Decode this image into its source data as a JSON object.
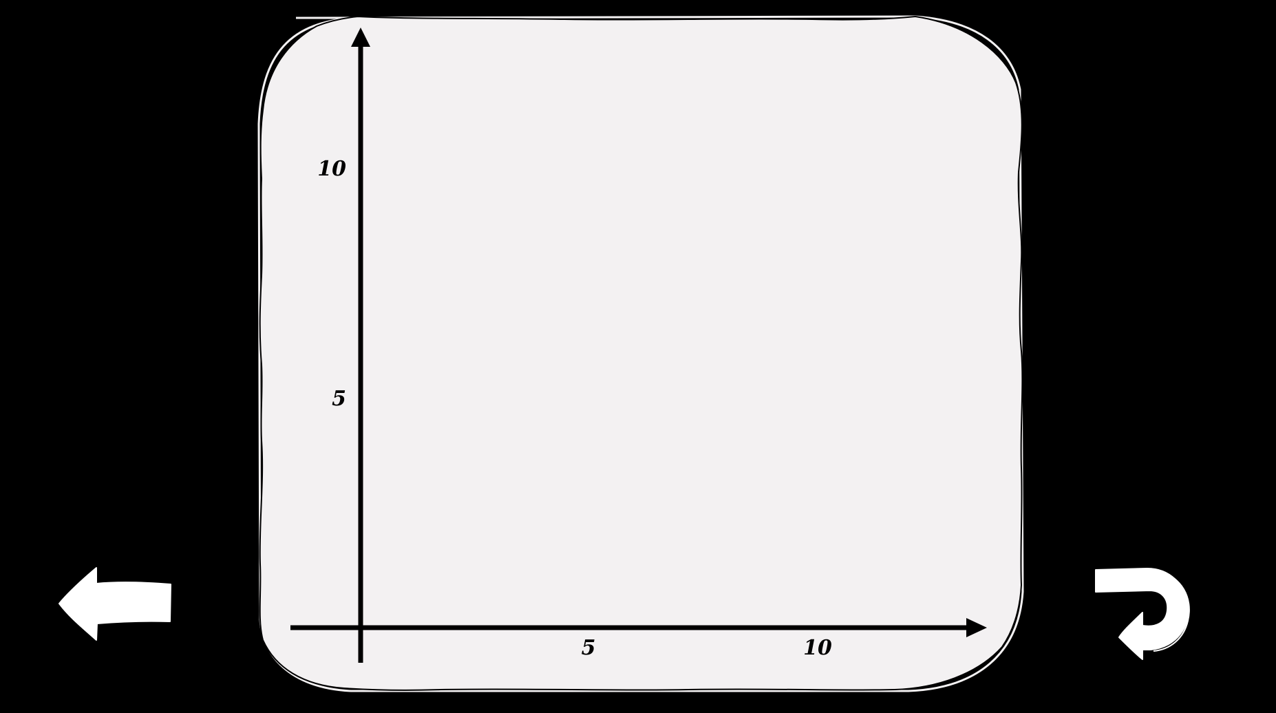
{
  "colors": {
    "background": "#000000",
    "board_fill": "#f3f1f2",
    "axis": "#000000",
    "icon_fill": "#ffffff"
  },
  "graph": {
    "x_axis": {
      "ticks": [
        {
          "value": 5,
          "label": "5"
        },
        {
          "value": 10,
          "label": "10"
        }
      ]
    },
    "y_axis": {
      "ticks": [
        {
          "value": 5,
          "label": "5"
        },
        {
          "value": 10,
          "label": "10"
        }
      ]
    }
  },
  "controls": {
    "back_icon": "left-arrow-icon",
    "undo_icon": "undo-arrow-icon"
  }
}
